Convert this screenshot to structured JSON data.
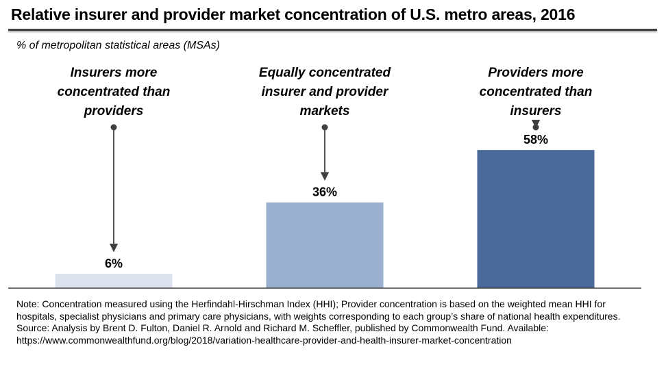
{
  "title": "Relative insurer and provider market concentration of U.S. metro areas, 2016",
  "subtitle": "% of metropolitan statistical areas (MSAs)",
  "chart_data": {
    "type": "bar",
    "categories": [
      [
        "Insurers more",
        "concentrated than",
        "providers"
      ],
      [
        "Equally concentrated",
        "insurer and provider",
        "markets"
      ],
      [
        "Providers more",
        "concentrated than",
        "insurers"
      ]
    ],
    "values": [
      6,
      36,
      58
    ],
    "value_labels": [
      "6%",
      "36%",
      "58%"
    ],
    "bar_colors": [
      "#dce3ef",
      "#9bb0cf",
      "#4a6a9a"
    ],
    "ylim": [
      0,
      100
    ],
    "grid": false,
    "legend": "none"
  },
  "notes": {
    "note": "Note: Concentration measured using the Herfindahl-Hirschman Index (HHI); Provider concentration is based on the weighted mean HHI for hospitals, specialist physicians and primary care physicians, with weights corresponding to each group’s share of national health expenditures.",
    "source": "Source: Analysis by Brent D. Fulton, Daniel R. Arnold and Richard M. Scheffler, published by Commonwealth Fund.  Available: https://www.commonwealthfund.org/blog/2018/variation-healthcare-provider-and-health-insurer-market-concentration"
  },
  "colors": {
    "axis": "#404040",
    "arrow": "#404040"
  }
}
